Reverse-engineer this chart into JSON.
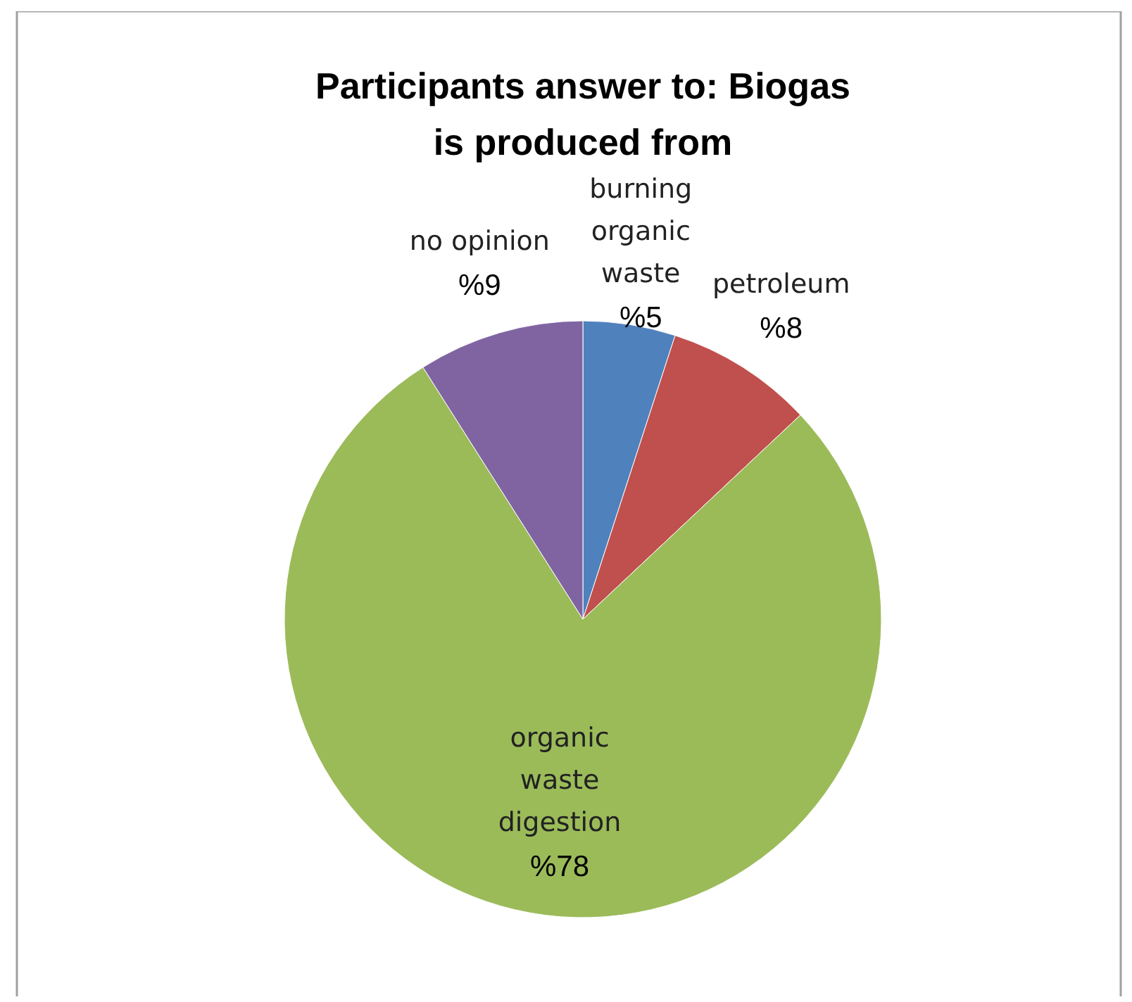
{
  "chart_data": {
    "type": "pie",
    "title": "Participants answer to: Biogas is produced from",
    "categories": [
      "burning organic waste",
      "petroleum",
      "organic waste digestion",
      "no opinion"
    ],
    "values": [
      5,
      8,
      78,
      9
    ],
    "colors": [
      "#4f81bd",
      "#c0504d",
      "#9bbb59",
      "#8064a2"
    ],
    "value_labels": [
      "%5",
      "%8",
      "%78",
      "%9"
    ],
    "legend": false
  }
}
